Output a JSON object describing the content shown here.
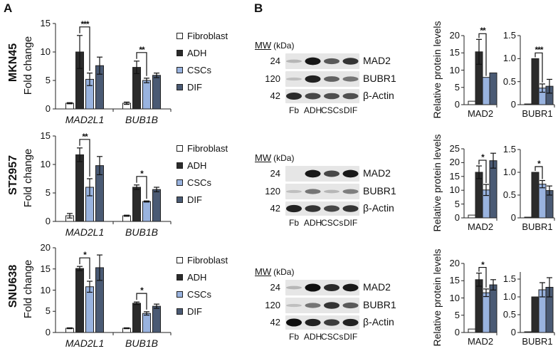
{
  "figure": {
    "panels": [
      {
        "letter": "A"
      },
      {
        "letter": "B"
      }
    ],
    "legend": {
      "items": [
        {
          "label": "Fibroblast",
          "color": "#ffffff"
        },
        {
          "label": "ADH",
          "color": "#2b2b2b"
        },
        {
          "label": "CSCs",
          "color": "#99b3df"
        },
        {
          "label": "DIF",
          "color": "#4a5a74"
        }
      ]
    },
    "rows": [
      {
        "cell_line": "MKN45"
      },
      {
        "cell_line": "ST2957"
      },
      {
        "cell_line": "SNU638"
      }
    ],
    "panel_a_ylabel": "Fold change",
    "panel_b_ylabel": "Relative protein levels",
    "blot": {
      "mw_header_main": "MW",
      "mw_header_unit": "(kDa)",
      "lanes": [
        "Fb",
        "ADH",
        "CSCs",
        "DIF"
      ],
      "bands": [
        {
          "mw": "24",
          "label": "MAD2"
        },
        {
          "mw": "120",
          "label": "BUBR1"
        },
        {
          "mw": "42",
          "label": "β-Actin"
        }
      ]
    }
  },
  "chart_data": [
    {
      "id": "A-MKN45",
      "type": "bar",
      "title": "MKN45",
      "ylabel": "Fold change",
      "ylim": [
        0,
        15
      ],
      "yticks": [
        "0",
        "5",
        "10",
        "15"
      ],
      "categories": [
        "MAD2L1",
        "BUB1B"
      ],
      "series": [
        {
          "name": "Fibroblast",
          "values": [
            1.0,
            1.0
          ],
          "errors": [
            0.1,
            0.2
          ]
        },
        {
          "name": "ADH",
          "values": [
            10.0,
            7.3
          ],
          "errors": [
            2.9,
            1.1
          ]
        },
        {
          "name": "CSCs",
          "values": [
            5.2,
            5.0
          ],
          "errors": [
            1.1,
            0.4
          ]
        },
        {
          "name": "DIF",
          "values": [
            7.6,
            5.9
          ],
          "errors": [
            1.5,
            0.4
          ]
        }
      ],
      "significance": [
        {
          "category": "MAD2L1",
          "between": [
            "ADH",
            "CSCs"
          ],
          "mark": "***"
        },
        {
          "category": "BUB1B",
          "between": [
            "ADH",
            "CSCs"
          ],
          "mark": "**"
        }
      ]
    },
    {
      "id": "A-ST2957",
      "type": "bar",
      "title": "ST2957",
      "ylabel": "Fold change",
      "ylim": [
        0,
        15
      ],
      "yticks": [
        "0",
        "5",
        "10",
        "15"
      ],
      "categories": [
        "MAD2L1",
        "BUB1B"
      ],
      "series": [
        {
          "name": "Fibroblast",
          "values": [
            1.0,
            1.0
          ],
          "errors": [
            0.4,
            0.1
          ]
        },
        {
          "name": "ADH",
          "values": [
            11.7,
            6.0
          ],
          "errors": [
            1.2,
            0.4
          ]
        },
        {
          "name": "CSCs",
          "values": [
            6.0,
            3.5
          ],
          "errors": [
            1.5,
            0.1
          ]
        },
        {
          "name": "DIF",
          "values": [
            9.8,
            5.6
          ],
          "errors": [
            1.6,
            0.4
          ]
        }
      ],
      "significance": [
        {
          "category": "MAD2L1",
          "between": [
            "ADH",
            "CSCs"
          ],
          "mark": "**"
        },
        {
          "category": "BUB1B",
          "between": [
            "ADH",
            "CSCs"
          ],
          "mark": "*"
        }
      ]
    },
    {
      "id": "A-SNU638",
      "type": "bar",
      "title": "SNU638",
      "ylabel": "Fold change",
      "ylim": [
        0,
        20
      ],
      "yticks": [
        "0",
        "5",
        "10",
        "15",
        "20"
      ],
      "categories": [
        "MAD2L1",
        "BUB1B"
      ],
      "series": [
        {
          "name": "Fibroblast",
          "values": [
            1.0,
            1.0
          ],
          "errors": [
            0.1,
            0.1
          ]
        },
        {
          "name": "ADH",
          "values": [
            15.1,
            6.9
          ],
          "errors": [
            0.5,
            0.3
          ]
        },
        {
          "name": "CSCs",
          "values": [
            10.8,
            4.5
          ],
          "errors": [
            1.3,
            0.4
          ]
        },
        {
          "name": "DIF",
          "values": [
            15.3,
            6.2
          ],
          "errors": [
            3.0,
            0.5
          ]
        }
      ],
      "significance": [
        {
          "category": "MAD2L1",
          "between": [
            "ADH",
            "CSCs"
          ],
          "mark": "*"
        },
        {
          "category": "BUB1B",
          "between": [
            "ADH",
            "CSCs"
          ],
          "mark": "*"
        }
      ]
    },
    {
      "id": "B-MKN45-MAD2",
      "type": "bar",
      "ylabel": "Relative protein levels",
      "ylim": [
        0,
        20
      ],
      "yticks": [
        "0",
        "5",
        "10",
        "15",
        "20"
      ],
      "categories": [
        "MAD2"
      ],
      "series": [
        {
          "name": "Fibroblast",
          "values": [
            1.0
          ],
          "errors": [
            0
          ]
        },
        {
          "name": "ADH",
          "values": [
            15.3
          ],
          "errors": [
            3.6
          ]
        },
        {
          "name": "CSCs",
          "values": [
            7.9
          ],
          "errors": [
            0
          ]
        },
        {
          "name": "DIF",
          "values": [
            9.2
          ],
          "errors": [
            0
          ]
        }
      ],
      "significance": [
        {
          "between": [
            "ADH",
            "CSCs"
          ],
          "mark": "**"
        }
      ]
    },
    {
      "id": "B-MKN45-BUBR1",
      "type": "bar",
      "ylim": [
        0,
        1.5
      ],
      "yticks": [
        "0",
        "0.5",
        "1.0",
        "1.5"
      ],
      "categories": [
        "BUBR1"
      ],
      "series": [
        {
          "name": "Fibroblast",
          "values": [
            0.01
          ],
          "errors": [
            0
          ]
        },
        {
          "name": "ADH",
          "values": [
            1.0
          ],
          "errors": [
            0
          ]
        },
        {
          "name": "CSCs",
          "values": [
            0.36
          ],
          "errors": [
            0.09
          ]
        },
        {
          "name": "DIF",
          "values": [
            0.4
          ],
          "errors": [
            0.15
          ]
        }
      ],
      "significance": [
        {
          "between": [
            "ADH",
            "CSCs"
          ],
          "mark": "***"
        }
      ]
    },
    {
      "id": "B-ST2957-MAD2",
      "type": "bar",
      "ylabel": "Relative protein levels",
      "ylim": [
        0,
        25
      ],
      "yticks": [
        "0",
        "5",
        "10",
        "15",
        "20",
        "25"
      ],
      "categories": [
        "MAD2"
      ],
      "series": [
        {
          "name": "Fibroblast",
          "values": [
            1.0
          ],
          "errors": [
            0
          ]
        },
        {
          "name": "ADH",
          "values": [
            16.5
          ],
          "errors": [
            2.3
          ]
        },
        {
          "name": "CSCs",
          "values": [
            10.1
          ],
          "errors": [
            2.0
          ]
        },
        {
          "name": "DIF",
          "values": [
            20.7
          ],
          "errors": [
            2.7
          ]
        }
      ],
      "significance": [
        {
          "between": [
            "ADH",
            "CSCs"
          ],
          "mark": "*"
        }
      ]
    },
    {
      "id": "B-ST2957-BUBR1",
      "type": "bar",
      "ylim": [
        0,
        1.5
      ],
      "yticks": [
        "0",
        "0.5",
        "1.0",
        "1.5"
      ],
      "categories": [
        "BUBR1"
      ],
      "series": [
        {
          "name": "Fibroblast",
          "values": [
            0.01
          ],
          "errors": [
            0
          ]
        },
        {
          "name": "ADH",
          "values": [
            1.0
          ],
          "errors": [
            0
          ]
        },
        {
          "name": "CSCs",
          "values": [
            0.74
          ],
          "errors": [
            0.08
          ]
        },
        {
          "name": "DIF",
          "values": [
            0.6
          ],
          "errors": [
            0.1
          ]
        }
      ],
      "significance": [
        {
          "between": [
            "ADH",
            "CSCs"
          ],
          "mark": "*"
        }
      ]
    },
    {
      "id": "B-SNU638-MAD2",
      "type": "bar",
      "ylabel": "Relative protein levels",
      "ylim": [
        0,
        20
      ],
      "yticks": [
        "0",
        "5",
        "10",
        "15",
        "20"
      ],
      "categories": [
        "MAD2"
      ],
      "series": [
        {
          "name": "Fibroblast",
          "values": [
            1.0
          ],
          "errors": [
            0
          ]
        },
        {
          "name": "ADH",
          "values": [
            15.3
          ],
          "errors": [
            1.9
          ]
        },
        {
          "name": "CSCs",
          "values": [
            11.5
          ],
          "errors": [
            1.1
          ]
        },
        {
          "name": "DIF",
          "values": [
            13.8
          ],
          "errors": [
            1.5
          ]
        }
      ],
      "significance": [
        {
          "between": [
            "ADH",
            "CSCs"
          ],
          "mark": "*"
        }
      ]
    },
    {
      "id": "B-SNU638-BUBR1",
      "type": "bar",
      "ylim": [
        0,
        1.7
      ],
      "yticks": [
        "0",
        "0.5",
        "1.0",
        "1.5"
      ],
      "categories": [
        "BUBR1"
      ],
      "series": [
        {
          "name": "Fibroblast",
          "values": [
            0.01
          ],
          "errors": [
            0
          ]
        },
        {
          "name": "ADH",
          "values": [
            1.0
          ],
          "errors": [
            0
          ]
        },
        {
          "name": "CSCs",
          "values": [
            1.2
          ],
          "errors": [
            0.2
          ]
        },
        {
          "name": "DIF",
          "values": [
            1.27
          ],
          "errors": [
            0.27
          ]
        }
      ],
      "significance": []
    }
  ]
}
